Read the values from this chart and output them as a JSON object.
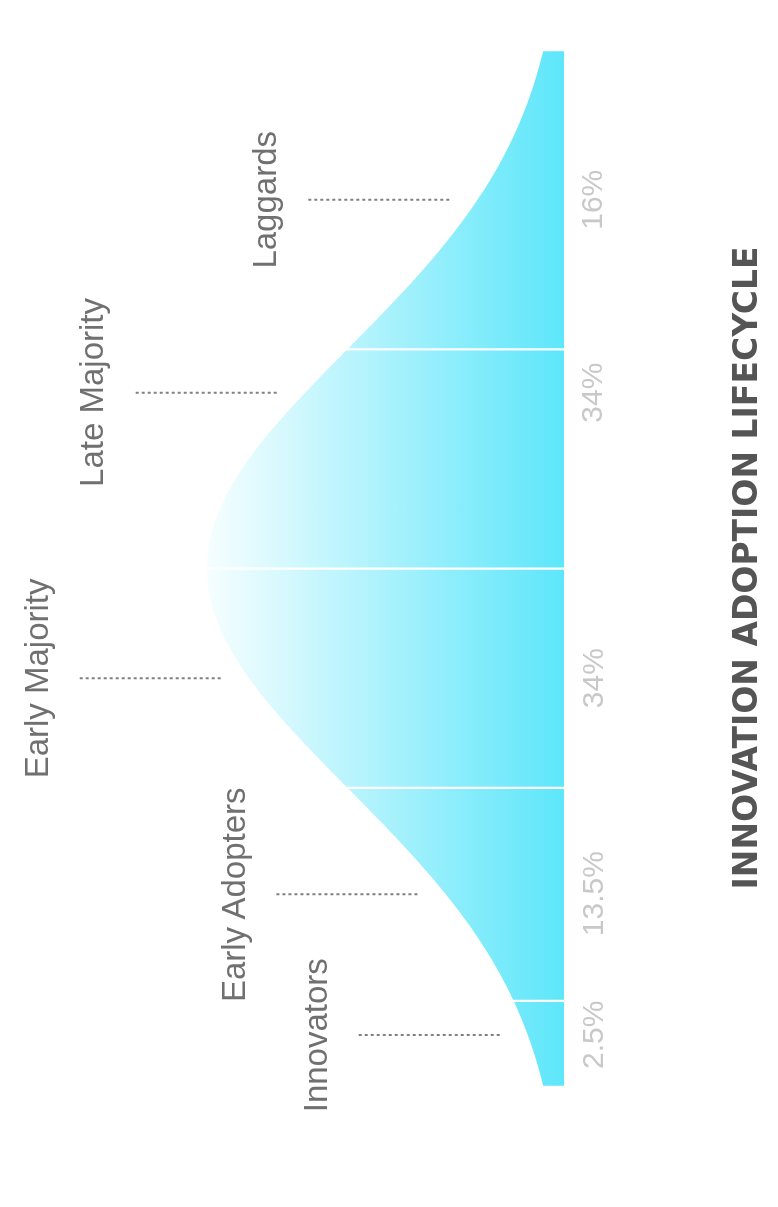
{
  "chart_data": {
    "type": "other",
    "title": "INNOVATION ADOPTION LIFECYCLE",
    "categories": [
      "Innovators",
      "Early Adopters",
      "Early Majority",
      "Late Majority",
      "Laggards"
    ],
    "values": [
      2.5,
      13.5,
      34,
      34,
      16
    ],
    "value_labels": [
      "2.5%",
      "13.5%",
      "34%",
      "34%",
      "16%"
    ],
    "color": "#5de6fa"
  }
}
